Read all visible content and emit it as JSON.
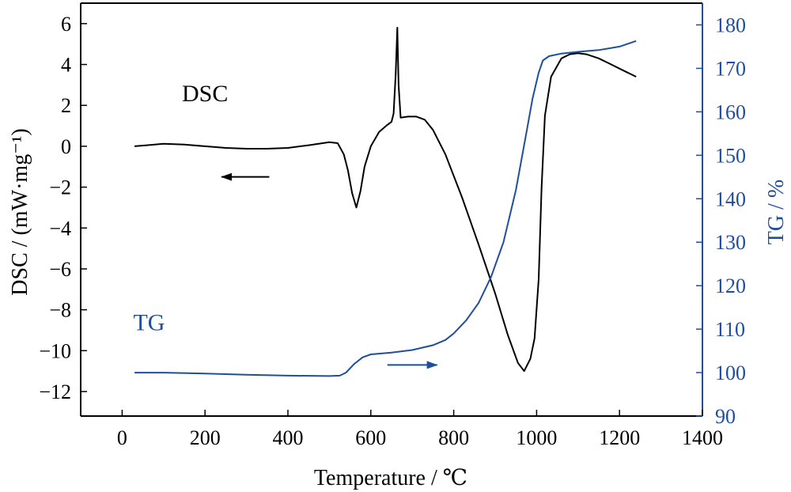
{
  "chart_data": {
    "type": "line",
    "xlabel": "Temperature / ℃",
    "ylabel_left": "DSC / (mW·mg⁻¹)",
    "ylabel_right": "TG / %",
    "xlim": [
      -100,
      1400
    ],
    "ylim_left": [
      -13.2,
      7
    ],
    "ylim_right": [
      90,
      185
    ],
    "x_ticks": [
      0,
      200,
      400,
      600,
      800,
      1000,
      1200,
      1400
    ],
    "y_left_ticks": [
      6,
      4,
      2,
      0,
      -2,
      -4,
      -6,
      -8,
      -10,
      -12
    ],
    "y_left_tick_labels": [
      "6",
      "4",
      "2",
      "0",
      "−2",
      "−4",
      "−6",
      "−8",
      "−10",
      "−12"
    ],
    "y_right_ticks": [
      90,
      100,
      110,
      120,
      130,
      140,
      150,
      160,
      170,
      180
    ],
    "colors": {
      "dsc": "#000000",
      "tg": "#1f4e9c",
      "axis_left": "#000000",
      "axis_right": "#1f4e9c"
    },
    "series": [
      {
        "name": "DSC",
        "axis": "left",
        "color": "#000000",
        "points": [
          [
            30,
            0.0
          ],
          [
            60,
            0.05
          ],
          [
            100,
            0.12
          ],
          [
            150,
            0.08
          ],
          [
            200,
            0.0
          ],
          [
            250,
            -0.08
          ],
          [
            300,
            -0.12
          ],
          [
            350,
            -0.12
          ],
          [
            400,
            -0.08
          ],
          [
            450,
            0.05
          ],
          [
            500,
            0.2
          ],
          [
            520,
            0.15
          ],
          [
            535,
            -0.4
          ],
          [
            545,
            -1.2
          ],
          [
            555,
            -2.3
          ],
          [
            565,
            -3.0
          ],
          [
            575,
            -2.2
          ],
          [
            585,
            -1.0
          ],
          [
            600,
            0.0
          ],
          [
            620,
            0.7
          ],
          [
            640,
            1.05
          ],
          [
            650,
            1.2
          ],
          [
            655,
            1.6
          ],
          [
            660,
            3.5
          ],
          [
            664,
            5.8
          ],
          [
            667,
            3.0
          ],
          [
            672,
            1.4
          ],
          [
            690,
            1.45
          ],
          [
            710,
            1.45
          ],
          [
            730,
            1.3
          ],
          [
            750,
            0.8
          ],
          [
            780,
            -0.4
          ],
          [
            820,
            -2.5
          ],
          [
            860,
            -4.8
          ],
          [
            900,
            -7.2
          ],
          [
            930,
            -9.2
          ],
          [
            955,
            -10.6
          ],
          [
            970,
            -11.0
          ],
          [
            985,
            -10.4
          ],
          [
            995,
            -9.4
          ],
          [
            1005,
            -6.5
          ],
          [
            1012,
            -2.0
          ],
          [
            1020,
            1.5
          ],
          [
            1035,
            3.4
          ],
          [
            1060,
            4.3
          ],
          [
            1080,
            4.5
          ],
          [
            1100,
            4.55
          ],
          [
            1120,
            4.5
          ],
          [
            1150,
            4.3
          ],
          [
            1180,
            4.0
          ],
          [
            1210,
            3.7
          ],
          [
            1240,
            3.4
          ]
        ]
      },
      {
        "name": "TG",
        "axis": "right",
        "color": "#1f4e9c",
        "points": [
          [
            30,
            100.0
          ],
          [
            100,
            100.0
          ],
          [
            200,
            99.8
          ],
          [
            300,
            99.5
          ],
          [
            400,
            99.3
          ],
          [
            500,
            99.2
          ],
          [
            525,
            99.3
          ],
          [
            540,
            100.0
          ],
          [
            560,
            102.0
          ],
          [
            580,
            103.5
          ],
          [
            600,
            104.2
          ],
          [
            650,
            104.6
          ],
          [
            700,
            105.2
          ],
          [
            750,
            106.3
          ],
          [
            780,
            107.5
          ],
          [
            800,
            109.0
          ],
          [
            830,
            112.0
          ],
          [
            860,
            116.0
          ],
          [
            890,
            122.0
          ],
          [
            920,
            130.0
          ],
          [
            950,
            142.0
          ],
          [
            975,
            155.0
          ],
          [
            990,
            163.0
          ],
          [
            1005,
            169.0
          ],
          [
            1015,
            171.8
          ],
          [
            1030,
            172.8
          ],
          [
            1060,
            173.4
          ],
          [
            1100,
            173.8
          ],
          [
            1150,
            174.2
          ],
          [
            1200,
            175.0
          ],
          [
            1240,
            176.3
          ]
        ]
      }
    ],
    "annotations": [
      {
        "text": "DSC",
        "x": 200,
        "y": 2.2,
        "axis": "left",
        "color": "#000000"
      },
      {
        "text": "TG",
        "x": 65,
        "y": -9.0,
        "axis": "left",
        "color": "#1f4e9c"
      }
    ],
    "arrows": [
      {
        "name": "dsc-arrow",
        "from": [
          355,
          -1.5
        ],
        "to": [
          240,
          -1.5
        ],
        "axis": "left",
        "color": "#000000"
      },
      {
        "name": "tg-arrow",
        "from": [
          640,
          -10.7
        ],
        "to": [
          760,
          -10.7
        ],
        "axis": "left",
        "color": "#1f4e9c"
      }
    ],
    "legend": "none",
    "grid": false
  }
}
